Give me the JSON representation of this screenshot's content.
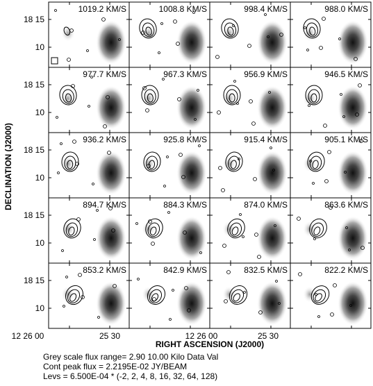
{
  "panels": [
    {
      "label": "1019.2 KM/S"
    },
    {
      "label": "1008.8 KM/S"
    },
    {
      "label": "998.4 KM/S"
    },
    {
      "label": "988.0 KM/S"
    },
    {
      "label": "977.7 KM/S"
    },
    {
      "label": "967.3 KM/S"
    },
    {
      "label": "956.9 KM/S"
    },
    {
      "label": "946.5 KM/S"
    },
    {
      "label": "936.2 KM/S"
    },
    {
      "label": "925.8 KM/S"
    },
    {
      "label": "915.4 KM/S"
    },
    {
      "label": "905.1 KM/S"
    },
    {
      "label": "894.7 KM/S"
    },
    {
      "label": "884.3 KM/S"
    },
    {
      "label": "874.0 KM/S"
    },
    {
      "label": "863.6 KM/S"
    },
    {
      "label": "853.2 KM/S"
    },
    {
      "label": "842.9 KM/S"
    },
    {
      "label": "832.5 KM/S"
    },
    {
      "label": "822.2 KM/S"
    }
  ],
  "y_axis": {
    "title": "DECLINATION (J2000)",
    "tick_labels": [
      "18 15",
      "10"
    ]
  },
  "x_axis": {
    "title": "RIGHT ASCENSION (J2000)",
    "tick_labels": [
      "12 26 00",
      "25 30",
      "12 26 00",
      "25 30"
    ]
  },
  "footer": [
    "Grey scale flux range= 2.90 10.00 Kilo Data Val",
    "Cont peak flux =  2.2195E-02 JY/BEAM",
    "Levs = 6.500E-04 * (-2, 2, 4, 8, 16, 32, 64, 128)"
  ]
}
